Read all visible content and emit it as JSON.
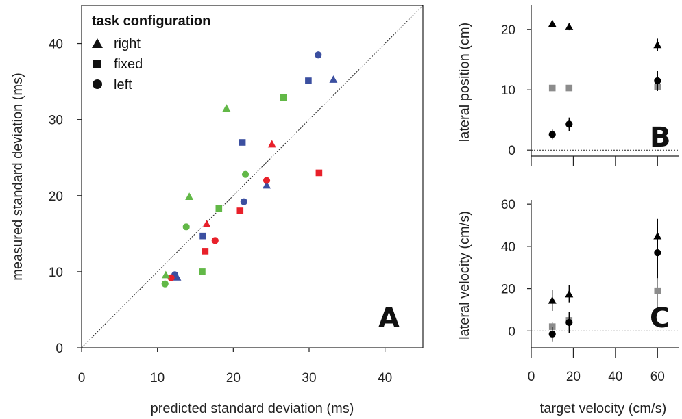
{
  "chart_data": [
    {
      "panel": "A",
      "type": "scatter",
      "xlabel": "predicted standard deviation (ms)",
      "ylabel": "measured standard deviation (ms)",
      "xlim": [
        0,
        45
      ],
      "ylim": [
        0,
        45
      ],
      "xticks": [
        0,
        10,
        20,
        30,
        40
      ],
      "yticks": [
        0,
        10,
        20,
        30,
        40
      ],
      "identity_line": true,
      "legend": {
        "title": "task configuration",
        "placement": "top-left",
        "entries": [
          {
            "label": "right",
            "marker": "triangle"
          },
          {
            "label": "fixed",
            "marker": "square"
          },
          {
            "label": "left",
            "marker": "circle"
          }
        ]
      },
      "colors": {
        "blue": "#3b4fa0",
        "red": "#e8202a",
        "green": "#62b847"
      },
      "points": [
        {
          "x": 33.2,
          "y": 35.3,
          "marker": "triangle",
          "color": "blue"
        },
        {
          "x": 24.4,
          "y": 21.4,
          "marker": "triangle",
          "color": "blue"
        },
        {
          "x": 12.6,
          "y": 9.3,
          "marker": "triangle",
          "color": "blue"
        },
        {
          "x": 29.9,
          "y": 35.1,
          "marker": "square",
          "color": "blue"
        },
        {
          "x": 21.2,
          "y": 27.0,
          "marker": "square",
          "color": "blue"
        },
        {
          "x": 16.0,
          "y": 14.7,
          "marker": "square",
          "color": "blue"
        },
        {
          "x": 31.2,
          "y": 38.5,
          "marker": "circle",
          "color": "blue"
        },
        {
          "x": 21.4,
          "y": 19.2,
          "marker": "circle",
          "color": "blue"
        },
        {
          "x": 12.3,
          "y": 9.6,
          "marker": "circle",
          "color": "blue"
        },
        {
          "x": 25.1,
          "y": 26.8,
          "marker": "triangle",
          "color": "red"
        },
        {
          "x": 16.5,
          "y": 16.3,
          "marker": "triangle",
          "color": "red"
        },
        {
          "x": 31.3,
          "y": 23.0,
          "marker": "square",
          "color": "red"
        },
        {
          "x": 20.9,
          "y": 18.0,
          "marker": "square",
          "color": "red"
        },
        {
          "x": 16.3,
          "y": 12.7,
          "marker": "square",
          "color": "red"
        },
        {
          "x": 24.4,
          "y": 22.0,
          "marker": "circle",
          "color": "red"
        },
        {
          "x": 17.6,
          "y": 14.1,
          "marker": "circle",
          "color": "red"
        },
        {
          "x": 11.8,
          "y": 9.2,
          "marker": "circle",
          "color": "red"
        },
        {
          "x": 19.1,
          "y": 31.5,
          "marker": "triangle",
          "color": "green"
        },
        {
          "x": 14.2,
          "y": 19.9,
          "marker": "triangle",
          "color": "green"
        },
        {
          "x": 11.1,
          "y": 9.6,
          "marker": "triangle",
          "color": "green"
        },
        {
          "x": 26.6,
          "y": 32.9,
          "marker": "square",
          "color": "green"
        },
        {
          "x": 18.1,
          "y": 18.3,
          "marker": "square",
          "color": "green"
        },
        {
          "x": 15.9,
          "y": 10.0,
          "marker": "square",
          "color": "green"
        },
        {
          "x": 21.6,
          "y": 22.8,
          "marker": "circle",
          "color": "green"
        },
        {
          "x": 13.8,
          "y": 15.9,
          "marker": "circle",
          "color": "green"
        },
        {
          "x": 11.0,
          "y": 8.4,
          "marker": "circle",
          "color": "green"
        }
      ]
    },
    {
      "panel": "B",
      "type": "scatter",
      "ylabel": "lateral position (cm)",
      "xlim": [
        0,
        70
      ],
      "ylim": [
        -1,
        24
      ],
      "yticks": [
        0,
        10,
        20
      ],
      "zero_line": true,
      "series": [
        {
          "marker": "triangle",
          "color": "#000000",
          "points": [
            {
              "x": 10,
              "y": 21.0,
              "err": 0.6
            },
            {
              "x": 18,
              "y": 20.5,
              "err": 0.6
            },
            {
              "x": 60,
              "y": 17.5,
              "err": 1.0
            }
          ]
        },
        {
          "marker": "square",
          "color": "#8c8c8c",
          "points": [
            {
              "x": 10,
              "y": 10.3,
              "err": 0
            },
            {
              "x": 18,
              "y": 10.3,
              "err": 0
            },
            {
              "x": 60,
              "y": 10.5,
              "err": 0.5
            }
          ]
        },
        {
          "marker": "circle",
          "color": "#000000",
          "points": [
            {
              "x": 10,
              "y": 2.6,
              "err": 0.8
            },
            {
              "x": 18,
              "y": 4.3,
              "err": 1.1
            },
            {
              "x": 60,
              "y": 11.5,
              "err": 1.7
            }
          ]
        }
      ]
    },
    {
      "panel": "C",
      "type": "scatter",
      "xlabel": "target velocity (cm/s)",
      "ylabel": "lateral velocity (cm/s)",
      "xlim": [
        0,
        70
      ],
      "ylim": [
        -8,
        62
      ],
      "xticks": [
        0,
        20,
        40,
        60
      ],
      "yticks": [
        0,
        20,
        40,
        60
      ],
      "zero_line": true,
      "series": [
        {
          "marker": "triangle",
          "color": "#000000",
          "points": [
            {
              "x": 10,
              "y": 14.5,
              "err": 5
            },
            {
              "x": 18,
              "y": 17.5,
              "err": 4
            },
            {
              "x": 60,
              "y": 45.0,
              "err": 8
            }
          ]
        },
        {
          "marker": "square",
          "color": "#8c8c8c",
          "points": [
            {
              "x": 10,
              "y": 2.0,
              "err": 2
            },
            {
              "x": 18,
              "y": 5.0,
              "err": 2
            },
            {
              "x": 60,
              "y": 19.0,
              "err": 8
            }
          ]
        },
        {
          "marker": "circle",
          "color": "#000000",
          "points": [
            {
              "x": 10,
              "y": -1.5,
              "err": 3.5
            },
            {
              "x": 18,
              "y": 4.0,
              "err": 5
            },
            {
              "x": 60,
              "y": 37.0,
              "err": 12
            }
          ]
        }
      ]
    }
  ]
}
